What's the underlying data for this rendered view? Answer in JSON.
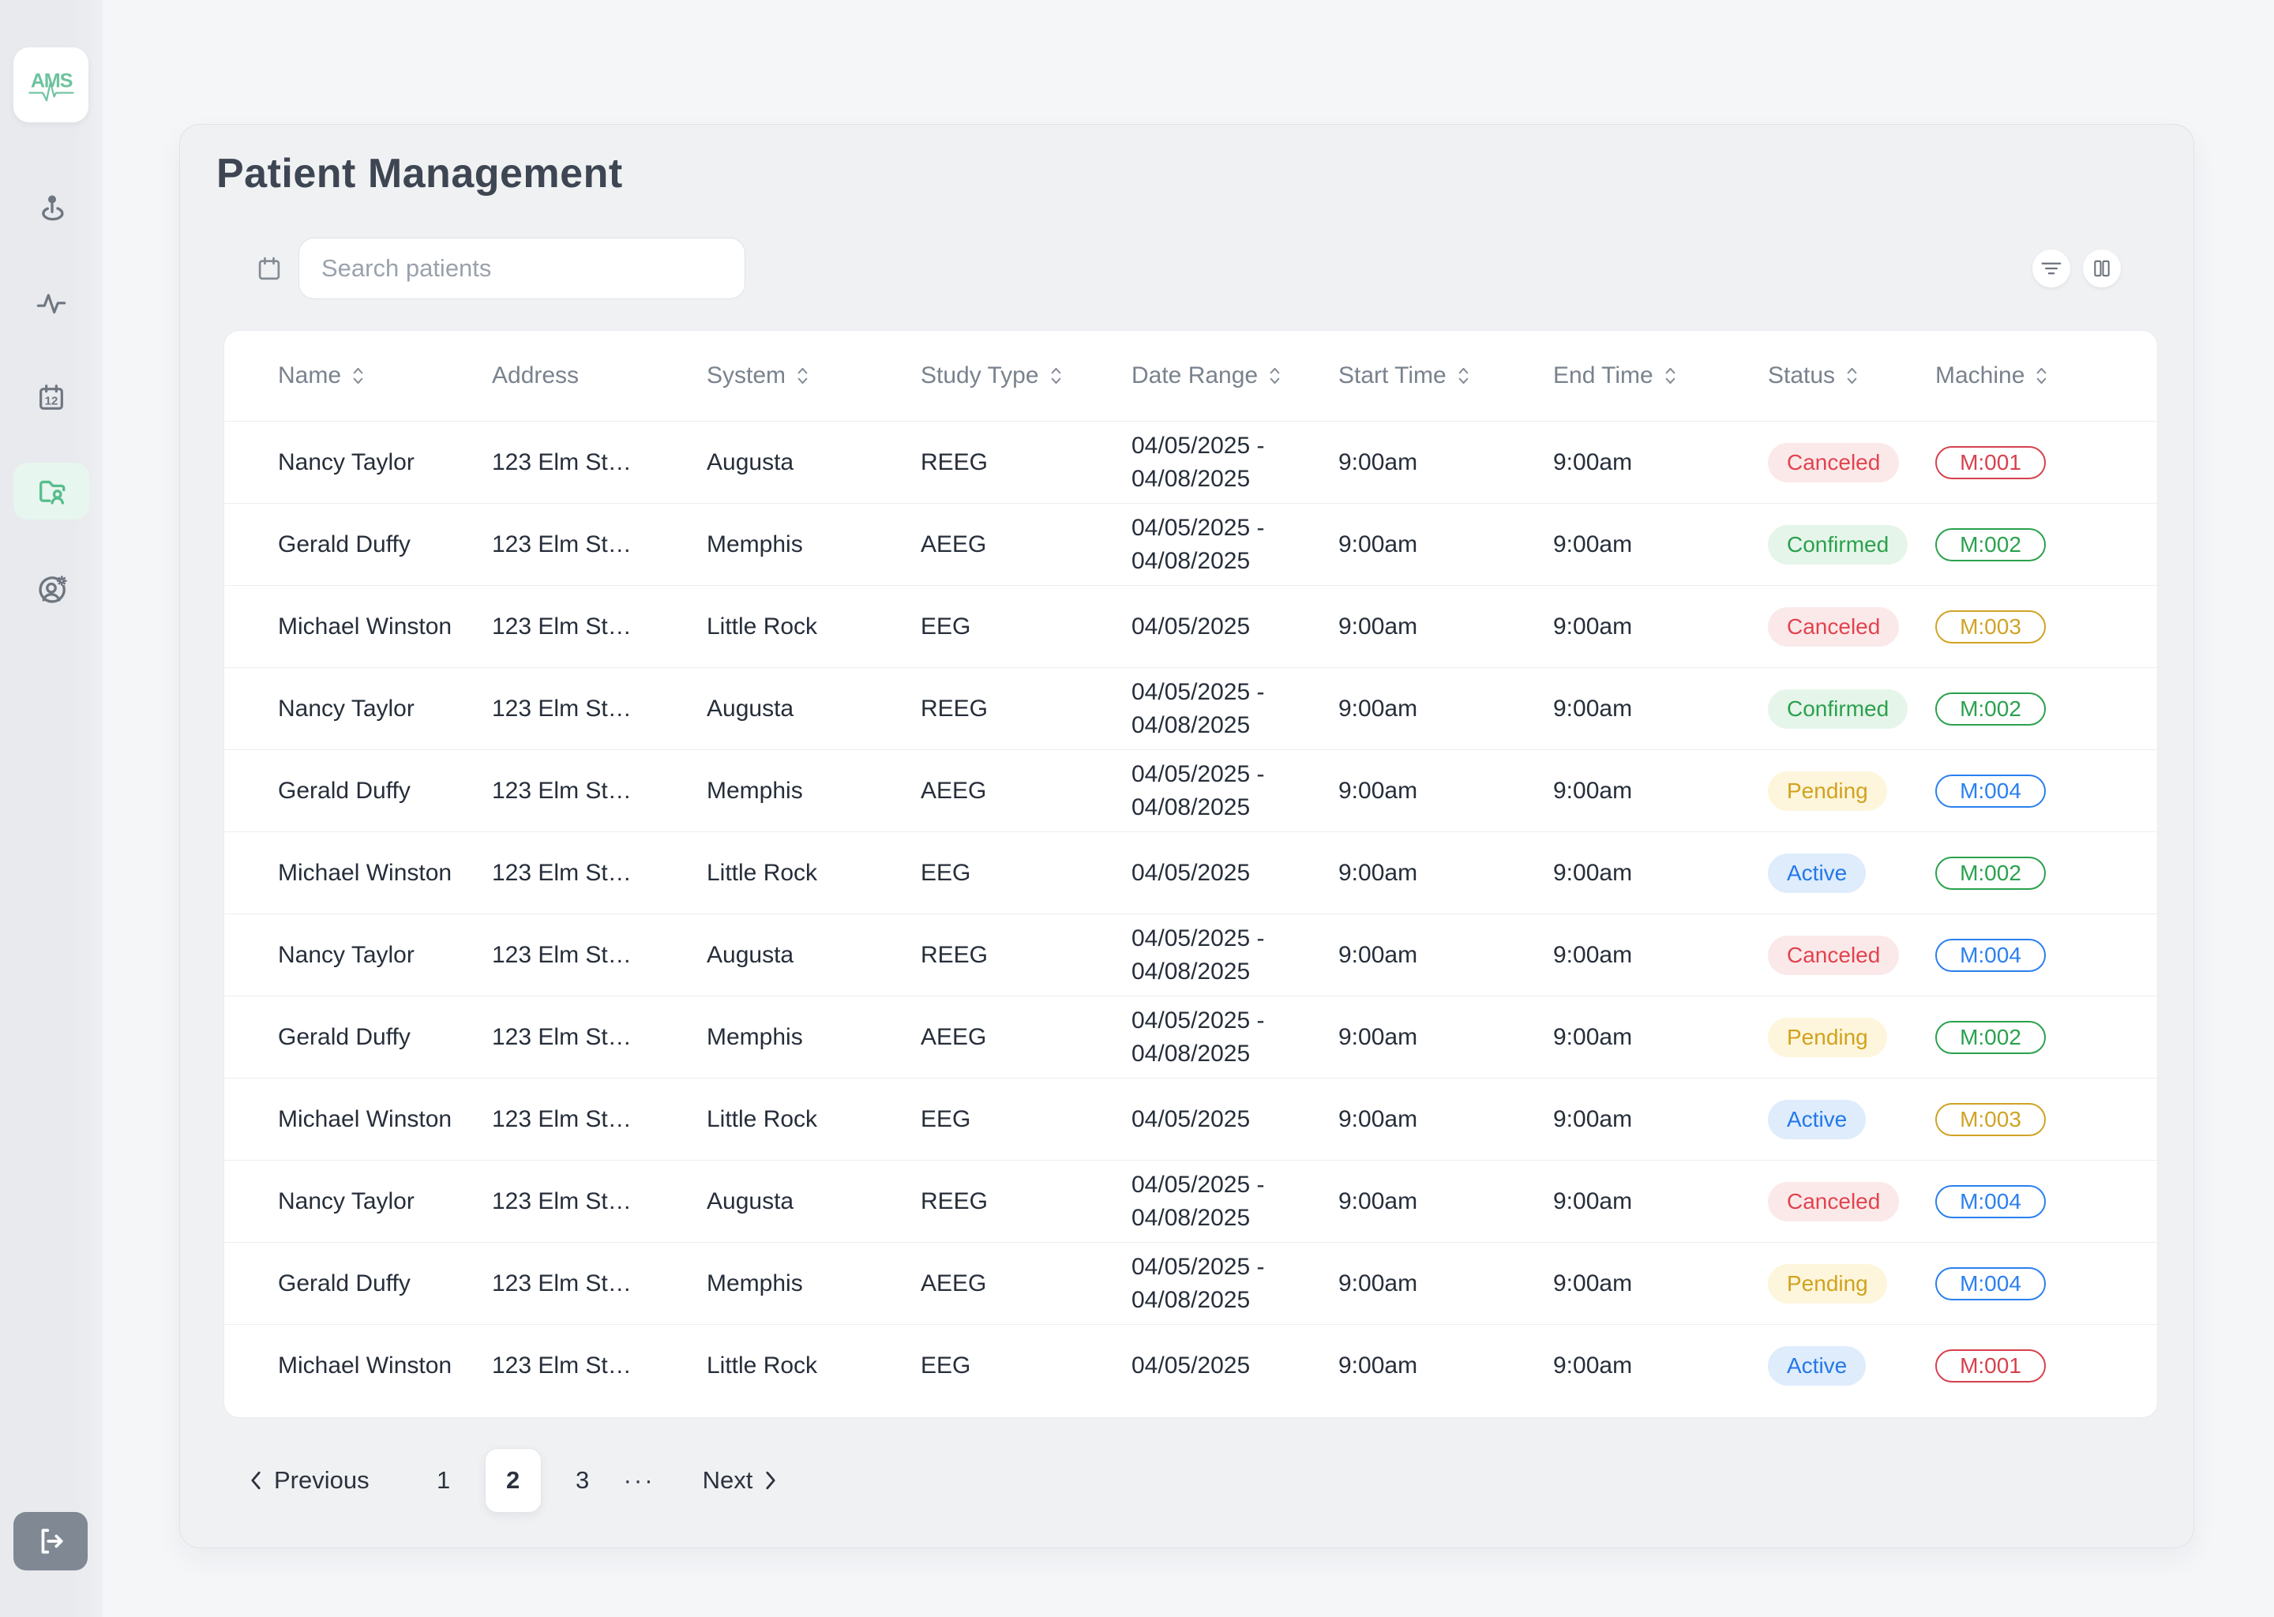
{
  "brand": {
    "logo_text": "AMS",
    "logo_color": "#6cc39e"
  },
  "sidebar": {
    "calendar_label": "12",
    "items": [
      {
        "name": "location-pin",
        "active": false
      },
      {
        "name": "activity",
        "active": false
      },
      {
        "name": "calendar",
        "active": false
      },
      {
        "name": "patient-folder",
        "active": true
      },
      {
        "name": "user-settings",
        "active": false
      }
    ]
  },
  "page": {
    "title": "Patient Management"
  },
  "search": {
    "placeholder": "Search patients"
  },
  "colors": {
    "accent_green": "#57bd8c",
    "active_nav_bg": "#e7f6ee",
    "sidebar_icon": "#6f7680",
    "header_text": "#79828d",
    "cell_text": "#262e3a"
  },
  "status_styles": {
    "canceled": {
      "color": "#e2434e",
      "background": "#fbe9ea"
    },
    "confirmed": {
      "color": "#2aa14d",
      "background": "#e6f5ea"
    },
    "pending": {
      "color": "#d2a21d",
      "background": "#fdf6dc"
    },
    "active": {
      "color": "#2478e8",
      "background": "#deecfc"
    }
  },
  "machine_styles": {
    "red": "#d6414d",
    "green": "#2aa14d",
    "yellow": "#d0a326",
    "blue": "#2b80ef"
  },
  "table": {
    "columns": [
      {
        "label": "Name",
        "sortable": true
      },
      {
        "label": "Address",
        "sortable": false
      },
      {
        "label": "System",
        "sortable": true
      },
      {
        "label": "Study Type",
        "sortable": true
      },
      {
        "label": "Date Range",
        "sortable": true
      },
      {
        "label": "Start Time",
        "sortable": true
      },
      {
        "label": "End Time",
        "sortable": true
      },
      {
        "label": "Status",
        "sortable": true
      },
      {
        "label": "Machine",
        "sortable": true
      }
    ],
    "rows": [
      {
        "name": "Nancy Taylor",
        "address": "123 Elm St…",
        "system": "Augusta",
        "study_type": "REEG",
        "date_range": [
          "04/05/2025 -",
          "04/08/2025"
        ],
        "start_time": "9:00am",
        "end_time": "9:00am",
        "status": "Canceled",
        "status_type": "canceled",
        "machine": "M:001",
        "machine_color": "red"
      },
      {
        "name": "Gerald Duffy",
        "address": "123 Elm St…",
        "system": "Memphis",
        "study_type": "AEEG",
        "date_range": [
          "04/05/2025 -",
          "04/08/2025"
        ],
        "start_time": "9:00am",
        "end_time": "9:00am",
        "status": "Confirmed",
        "status_type": "confirmed",
        "machine": "M:002",
        "machine_color": "green"
      },
      {
        "name": "Michael Winston",
        "address": "123 Elm St…",
        "system": "Little Rock",
        "study_type": "EEG",
        "date_range": [
          "04/05/2025"
        ],
        "start_time": "9:00am",
        "end_time": "9:00am",
        "status": "Canceled",
        "status_type": "canceled",
        "machine": "M:003",
        "machine_color": "yellow"
      },
      {
        "name": "Nancy Taylor",
        "address": "123 Elm St…",
        "system": "Augusta",
        "study_type": "REEG",
        "date_range": [
          "04/05/2025 -",
          "04/08/2025"
        ],
        "start_time": "9:00am",
        "end_time": "9:00am",
        "status": "Confirmed",
        "status_type": "confirmed",
        "machine": "M:002",
        "machine_color": "green"
      },
      {
        "name": "Gerald Duffy",
        "address": "123 Elm St…",
        "system": "Memphis",
        "study_type": "AEEG",
        "date_range": [
          "04/05/2025 -",
          "04/08/2025"
        ],
        "start_time": "9:00am",
        "end_time": "9:00am",
        "status": "Pending",
        "status_type": "pending",
        "machine": "M:004",
        "machine_color": "blue"
      },
      {
        "name": "Michael Winston",
        "address": "123 Elm St…",
        "system": "Little Rock",
        "study_type": "EEG",
        "date_range": [
          "04/05/2025"
        ],
        "start_time": "9:00am",
        "end_time": "9:00am",
        "status": "Active",
        "status_type": "active",
        "machine": "M:002",
        "machine_color": "green"
      },
      {
        "name": "Nancy Taylor",
        "address": "123 Elm St…",
        "system": "Augusta",
        "study_type": "REEG",
        "date_range": [
          "04/05/2025 -",
          "04/08/2025"
        ],
        "start_time": "9:00am",
        "end_time": "9:00am",
        "status": "Canceled",
        "status_type": "canceled",
        "machine": "M:004",
        "machine_color": "blue"
      },
      {
        "name": "Gerald Duffy",
        "address": "123 Elm St…",
        "system": "Memphis",
        "study_type": "AEEG",
        "date_range": [
          "04/05/2025 -",
          "04/08/2025"
        ],
        "start_time": "9:00am",
        "end_time": "9:00am",
        "status": "Pending",
        "status_type": "pending",
        "machine": "M:002",
        "machine_color": "green"
      },
      {
        "name": "Michael Winston",
        "address": "123 Elm St…",
        "system": "Little Rock",
        "study_type": "EEG",
        "date_range": [
          "04/05/2025"
        ],
        "start_time": "9:00am",
        "end_time": "9:00am",
        "status": "Active",
        "status_type": "active",
        "machine": "M:003",
        "machine_color": "yellow"
      },
      {
        "name": "Nancy Taylor",
        "address": "123 Elm St…",
        "system": "Augusta",
        "study_type": "REEG",
        "date_range": [
          "04/05/2025 -",
          "04/08/2025"
        ],
        "start_time": "9:00am",
        "end_time": "9:00am",
        "status": "Canceled",
        "status_type": "canceled",
        "machine": "M:004",
        "machine_color": "blue"
      },
      {
        "name": "Gerald Duffy",
        "address": "123 Elm St…",
        "system": "Memphis",
        "study_type": "AEEG",
        "date_range": [
          "04/05/2025 -",
          "04/08/2025"
        ],
        "start_time": "9:00am",
        "end_time": "9:00am",
        "status": "Pending",
        "status_type": "pending",
        "machine": "M:004",
        "machine_color": "blue"
      },
      {
        "name": "Michael Winston",
        "address": "123 Elm St…",
        "system": "Little Rock",
        "study_type": "EEG",
        "date_range": [
          "04/05/2025"
        ],
        "start_time": "9:00am",
        "end_time": "9:00am",
        "status": "Active",
        "status_type": "active",
        "machine": "M:001",
        "machine_color": "red"
      }
    ]
  },
  "pagination": {
    "previous_label": "Previous",
    "pages": [
      "1",
      "2",
      "3"
    ],
    "active_page": "2",
    "ellipsis": "···",
    "next_label": "Next"
  }
}
